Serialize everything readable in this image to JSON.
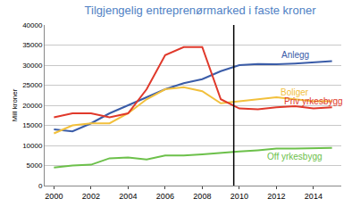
{
  "chart_data": {
    "type": "line",
    "title": "Tilgjengelig entreprenørmarked i faste kroner",
    "y_label": "Mill kroner",
    "x": [
      2000,
      2001,
      2002,
      2003,
      2004,
      2005,
      2006,
      2007,
      2008,
      2009,
      2010,
      2011,
      2012,
      2013,
      2014,
      2015
    ],
    "series": [
      {
        "name": "Anlegg",
        "color": "#3a5ca8",
        "values": [
          14000,
          13500,
          15500,
          18000,
          20000,
          22000,
          24000,
          25500,
          26500,
          28500,
          30000,
          30300,
          30200,
          30400,
          30700,
          31000
        ]
      },
      {
        "name": "Boliger",
        "color": "#f2c03c",
        "values": [
          13000,
          15000,
          15500,
          15500,
          18000,
          21500,
          24000,
          24500,
          23500,
          20500,
          21000,
          21500,
          22000,
          21500,
          21000,
          21000
        ]
      },
      {
        "name": "Priv yrkesbygg",
        "color": "#e0392b",
        "values": [
          17000,
          18000,
          18000,
          17000,
          18000,
          24000,
          32500,
          34500,
          34500,
          21500,
          19200,
          19000,
          19500,
          19800,
          19200,
          19500
        ]
      },
      {
        "name": "Off yrkesbygg",
        "color": "#6cc04a",
        "values": [
          4500,
          5000,
          5200,
          6800,
          7000,
          6500,
          7500,
          7500,
          7800,
          8200,
          8500,
          8800,
          9200,
          9200,
          9300,
          9400
        ]
      }
    ],
    "vertical_line": 2009.7,
    "xlim": [
      1999.5,
      2015.5
    ],
    "xticks": [
      2000,
      2002,
      2004,
      2006,
      2008,
      2010,
      2012,
      2014
    ],
    "ylim": [
      0,
      40000
    ],
    "yticks": [
      0,
      5000,
      10000,
      15000,
      20000,
      25000,
      30000,
      35000,
      40000
    ],
    "grid": true
  }
}
